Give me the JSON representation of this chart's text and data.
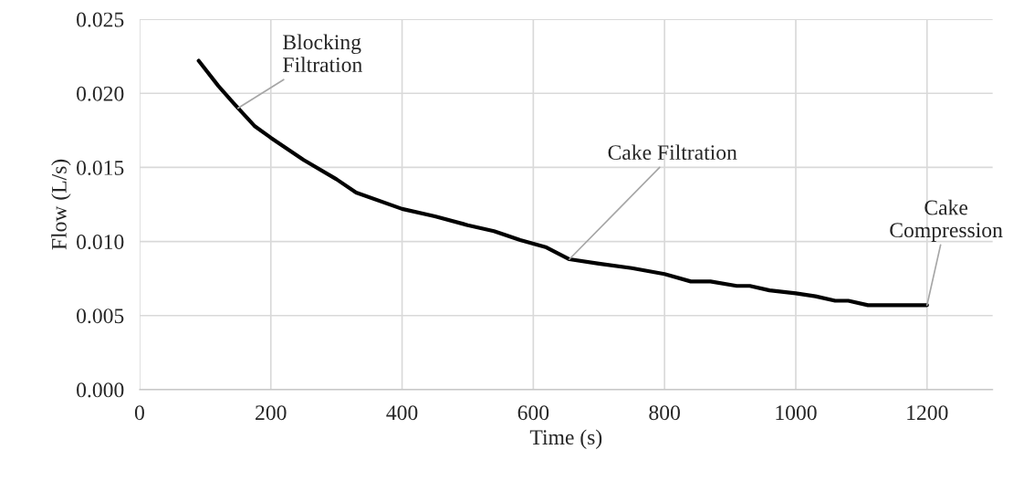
{
  "chart_data": {
    "type": "line",
    "xlabel": "Time (s)",
    "ylabel": "Flow (L/s)",
    "x": [
      90,
      120,
      150,
      175,
      200,
      250,
      300,
      330,
      400,
      450,
      500,
      540,
      580,
      620,
      655,
      700,
      750,
      800,
      840,
      870,
      910,
      930,
      960,
      1000,
      1030,
      1060,
      1080,
      1110,
      1200
    ],
    "series": [
      {
        "color": "#000000",
        "values": [
          0.0222,
          0.0205,
          0.019,
          0.0178,
          0.017,
          0.0155,
          0.0142,
          0.0133,
          0.0122,
          0.0117,
          0.0111,
          0.0107,
          0.0101,
          0.0096,
          0.0088,
          0.0085,
          0.0082,
          0.0078,
          0.0073,
          0.0073,
          0.007,
          0.007,
          0.0067,
          0.0065,
          0.0063,
          0.006,
          0.006,
          0.0057,
          0.0057
        ]
      }
    ],
    "xlim": [
      0,
      1300
    ],
    "xticks": [
      0,
      200,
      400,
      600,
      800,
      1000,
      1200
    ],
    "ylim": [
      0,
      0.025
    ],
    "yticks": [
      {
        "value": 0,
        "label": "0.000"
      },
      {
        "value": 0.005,
        "label": "0.005"
      },
      {
        "value": 0.01,
        "label": "0.010"
      },
      {
        "value": 0.015,
        "label": "0.015"
      },
      {
        "value": 0.02,
        "label": "0.020"
      },
      {
        "value": 0.025,
        "label": "0.025"
      }
    ],
    "grid": true,
    "marker": "none",
    "line_style": "solid",
    "annotations": [
      {
        "text": "Blocking\nFiltration",
        "x": 150,
        "y": 0.019
      },
      {
        "text": "Cake Filtration",
        "x": 655,
        "y": 0.0088
      },
      {
        "text": "Cake\nCompression",
        "x": 1200,
        "y": 0.0057
      }
    ]
  }
}
